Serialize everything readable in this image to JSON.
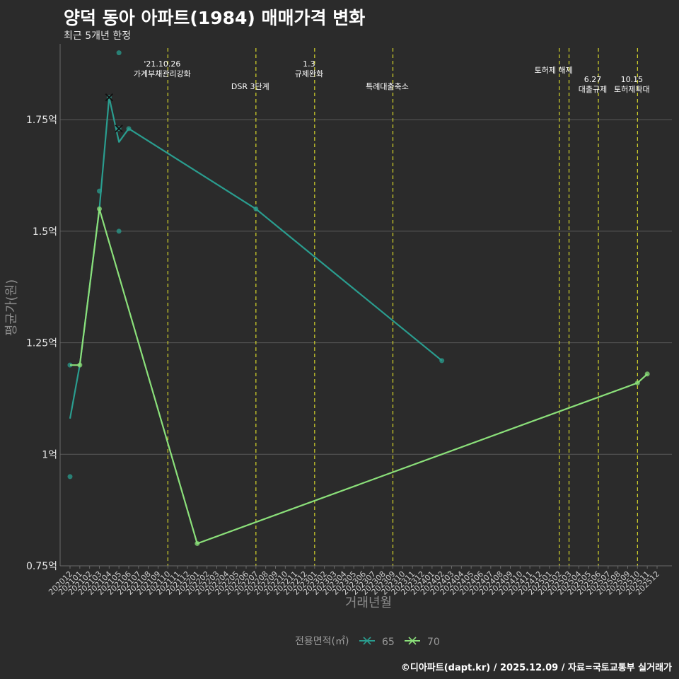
{
  "title": "양덕 동아 아파트(1984) 매매가격 변화",
  "subtitle": "최근 5개년 한정",
  "footer": "©디아파트(dapt.kr) / 2025.12.09 / 자료=국토교통부 실거래가",
  "chart_data": {
    "type": "line",
    "xlabel": "거래년월",
    "ylabel": "평균가(원)",
    "ylim": [
      0.75,
      1.92
    ],
    "yticks": [
      0.75,
      1.0,
      1.25,
      1.5,
      1.75
    ],
    "ytick_labels": [
      "0.75억",
      "1억",
      "1.25억",
      "1.5억",
      "1.75억"
    ],
    "months": [
      "202012",
      "202101",
      "202102",
      "202103",
      "202104",
      "202105",
      "202106",
      "202107",
      "202108",
      "202109",
      "202110",
      "202111",
      "202112",
      "202201",
      "202202",
      "202203",
      "202204",
      "202205",
      "202206",
      "202207",
      "202208",
      "202209",
      "202210",
      "202211",
      "202212",
      "202301",
      "202302",
      "202303",
      "202304",
      "202305",
      "202306",
      "202307",
      "202308",
      "202309",
      "202310",
      "202311",
      "202312",
      "202401",
      "202402",
      "202403",
      "202404",
      "202405",
      "202406",
      "202407",
      "202408",
      "202409",
      "202410",
      "202411",
      "202412",
      "202501",
      "202502",
      "202503",
      "202504",
      "202505",
      "202506",
      "202507",
      "202508",
      "202509",
      "202510",
      "202511",
      "202512"
    ],
    "legend_title": "전용면적(㎡)",
    "series": [
      {
        "name": "65",
        "color": "#2a9d8f",
        "line": [
          [
            "202012",
            1.08
          ],
          [
            "202101",
            1.2
          ],
          [
            "202103",
            1.55
          ],
          [
            "202104",
            1.8
          ],
          [
            "202105",
            1.7
          ],
          [
            "202106",
            1.73
          ],
          [
            "202207",
            1.55
          ],
          [
            "202402",
            1.21
          ]
        ],
        "points": [
          [
            "202012",
            1.2
          ],
          [
            "202012",
            0.95
          ],
          [
            "202103",
            1.59
          ],
          [
            "202104",
            1.8
          ],
          [
            "202105",
            1.9
          ],
          [
            "202105",
            1.5
          ],
          [
            "202105",
            1.73
          ],
          [
            "202106",
            1.73
          ],
          [
            "202207",
            1.55
          ],
          [
            "202402",
            1.21
          ]
        ],
        "crosses": [
          [
            "202104",
            1.8
          ],
          [
            "202105",
            1.73
          ]
        ]
      },
      {
        "name": "70",
        "color": "#8be07a",
        "line": [
          [
            "202012",
            1.2
          ],
          [
            "202101",
            1.2
          ],
          [
            "202103",
            1.55
          ],
          [
            "202201",
            0.8
          ],
          [
            "202510",
            1.16
          ],
          [
            "202511",
            1.18
          ]
        ],
        "points": [
          [
            "202101",
            1.2
          ],
          [
            "202103",
            1.55
          ],
          [
            "202201",
            0.8
          ],
          [
            "202510",
            1.16
          ],
          [
            "202511",
            1.18
          ]
        ],
        "crosses": []
      }
    ],
    "events": [
      {
        "month": "202110",
        "lines": [
          "'21.10.26",
          "가계부채관리강화"
        ],
        "row": 0
      },
      {
        "month": "202207",
        "lines": [
          "DSR 3단계"
        ],
        "row": 2
      },
      {
        "month": "202301",
        "lines": [
          "1.3",
          "규제완화"
        ],
        "row": 0
      },
      {
        "month": "202309",
        "lines": [
          "특례대출축소"
        ],
        "row": 2
      },
      {
        "month": "202502",
        "lines": [
          "토허제 해제"
        ],
        "row": 1
      },
      {
        "month": "202503",
        "lines": [],
        "row": 1
      },
      {
        "month": "202506",
        "lines": [
          "6.27",
          "대출규제"
        ],
        "row": 3
      },
      {
        "month": "202510",
        "lines": [
          "10.15",
          "토허제확대"
        ],
        "row": 3
      }
    ],
    "colors": {
      "grid": "#5a5a5a",
      "event": "#d7d72a",
      "background": "#2b2b2b"
    }
  }
}
